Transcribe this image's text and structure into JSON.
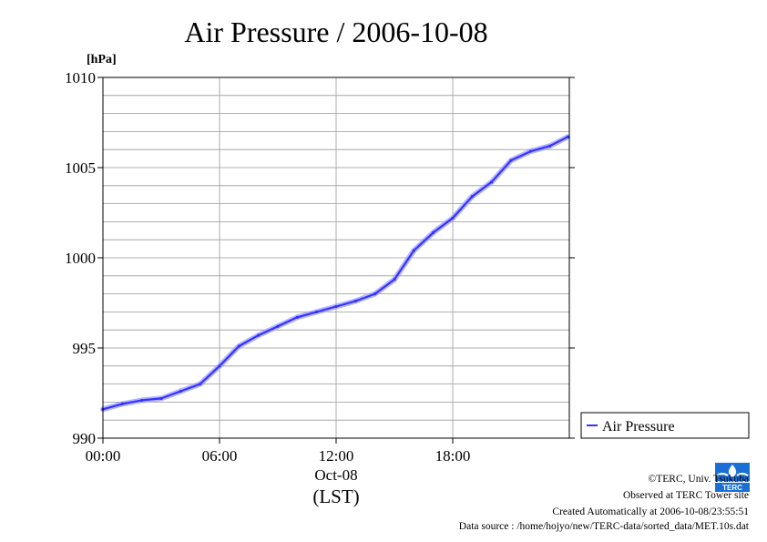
{
  "chart_data": {
    "type": "line",
    "title": "Air Pressure / 2006-10-08",
    "ylabel": "[hPa]",
    "xlabel": "(LST)",
    "x_date_label": "Oct-08",
    "ylim": [
      990,
      1010
    ],
    "y_ticks": [
      "990",
      "995",
      "1000",
      "1005",
      "1010"
    ],
    "x_ticks": [
      "00:00",
      "06:00",
      "12:00",
      "18:00"
    ],
    "grid": true,
    "legend_position": "right, below plot center",
    "series": [
      {
        "name": "Air Pressure",
        "color": "#3333ff",
        "x": [
          "00:00",
          "01:00",
          "02:00",
          "03:00",
          "04:00",
          "05:00",
          "06:00",
          "07:00",
          "08:00",
          "09:00",
          "10:00",
          "11:00",
          "12:00",
          "13:00",
          "14:00",
          "15:00",
          "16:00",
          "17:00",
          "18:00",
          "19:00",
          "20:00",
          "21:00",
          "22:00",
          "23:00",
          "23:55"
        ],
        "values": [
          991.6,
          991.9,
          992.1,
          992.2,
          992.6,
          993.0,
          994.0,
          995.1,
          995.7,
          996.2,
          996.7,
          997.0,
          997.3,
          997.6,
          998.0,
          998.8,
          1000.4,
          1001.4,
          1002.2,
          1003.4,
          1004.2,
          1005.4,
          1005.9,
          1006.2,
          1006.7
        ]
      }
    ]
  },
  "footer": {
    "copyright": "©TERC, Univ. Tsukuba",
    "observed": "Observed at TERC Tower site",
    "created": "Created Automatically at 2006-10-08/23:55:51",
    "source": "Data source : /home/hojyo/new/TERC-data/sorted_data/MET.10s.dat"
  },
  "logo": {
    "text": "TERC",
    "color": "#1a6fd6"
  }
}
